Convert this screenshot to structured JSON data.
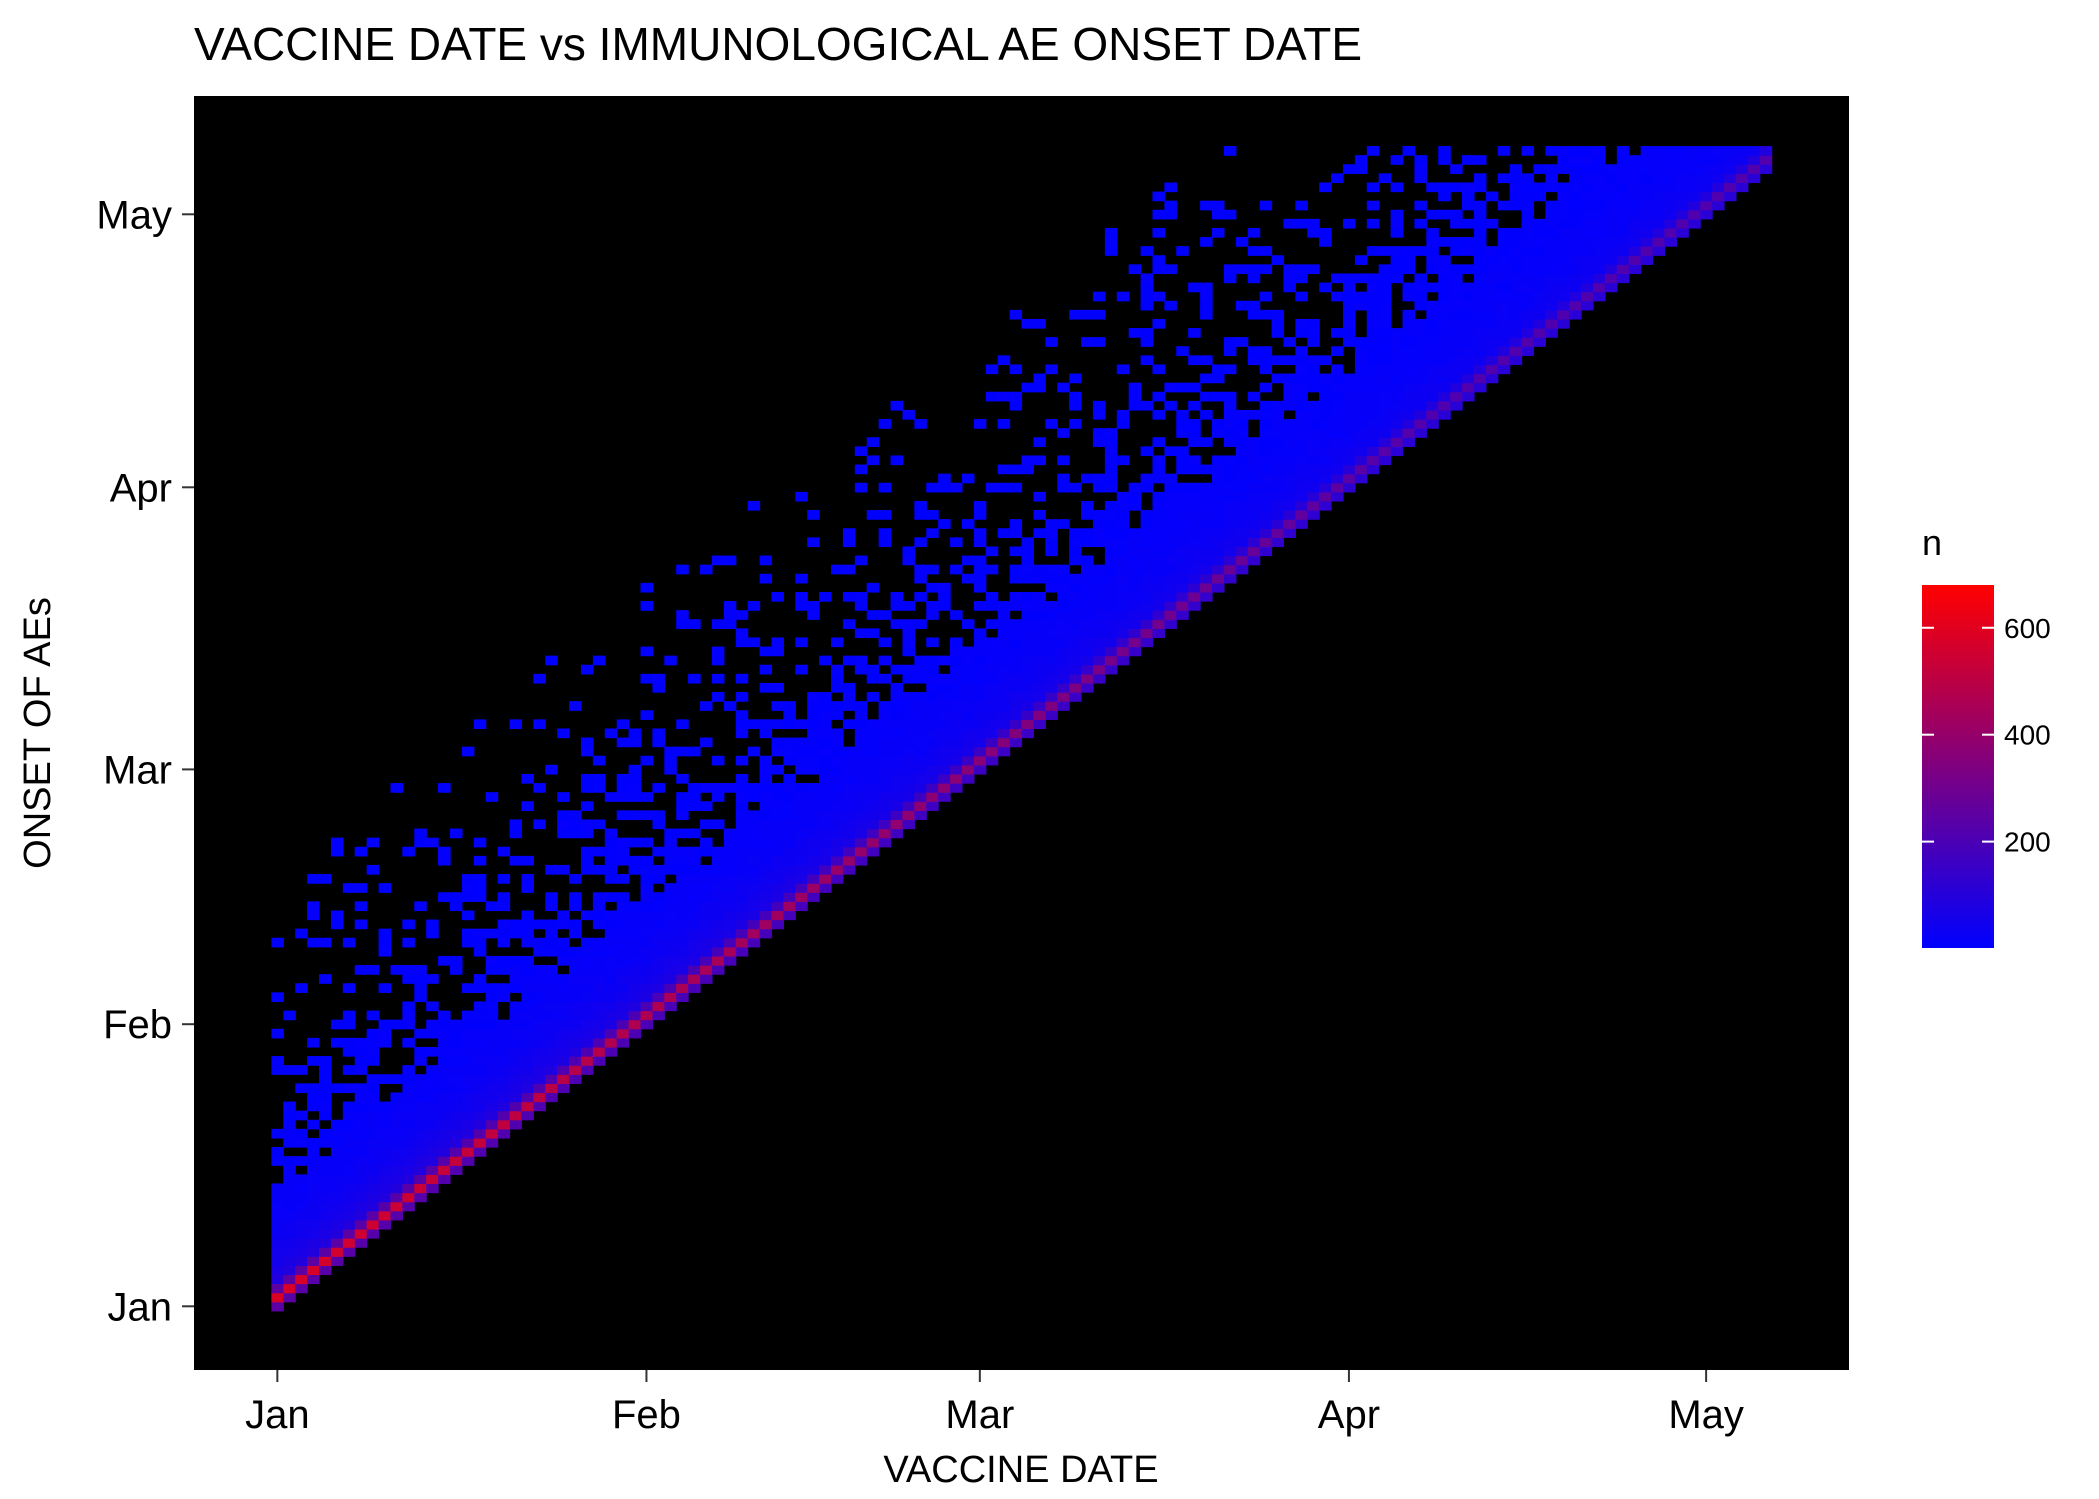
{
  "chart_data": {
    "type": "heatmap",
    "title": "VACCINE DATE vs IMMUNOLOGICAL AE ONSET DATE",
    "xlabel": "VACCINE DATE",
    "ylabel": "ONSET OF AEs",
    "x_ticks": [
      {
        "label": "Jan",
        "day": 1
      },
      {
        "label": "Feb",
        "day": 32
      },
      {
        "label": "Mar",
        "day": 60
      },
      {
        "label": "Apr",
        "day": 91
      },
      {
        "label": "May",
        "day": 121
      }
    ],
    "y_ticks": [
      {
        "label": "Jan",
        "day": 1
      },
      {
        "label": "Feb",
        "day": 32
      },
      {
        "label": "Mar",
        "day": 60
      },
      {
        "label": "Apr",
        "day": 91
      },
      {
        "label": "May",
        "day": 121
      }
    ],
    "xlim": [
      -6,
      133
    ],
    "ylim": [
      -6,
      134
    ],
    "x_data_range": [
      1,
      126
    ],
    "legend": {
      "title": "n",
      "position": "right",
      "range": [
        1,
        680
      ],
      "ticks": [
        200,
        400,
        600
      ],
      "colors": [
        "#0000ff",
        "#ff0000"
      ]
    },
    "background": "#000000",
    "grid": false
  }
}
